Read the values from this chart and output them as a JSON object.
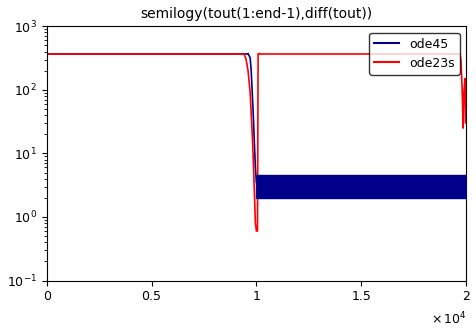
{
  "title": "semilogy(tout(1:end-1),diff(tout))",
  "xlim": [
    0,
    20000
  ],
  "ylim": [
    0.1,
    1000
  ],
  "xticks": [
    0,
    5000,
    10000,
    15000,
    20000
  ],
  "xtick_labels": [
    "0",
    "0.5",
    "1",
    "1.5",
    "2"
  ],
  "yticks": [
    0.1,
    1.0,
    10.0,
    100.0,
    1000.0
  ],
  "ytick_labels": [
    "10^{-1}",
    "10^{0}",
    "10^{1}",
    "10^{2}",
    "10^{3}"
  ],
  "legend_labels": [
    "ode45",
    "ode23s"
  ],
  "ode45_color": "#00008B",
  "ode23s_color": "red",
  "blue_band_y_bot": 2.0,
  "blue_band_y_top": 4.5,
  "blue_band_x_start": 10000,
  "blue_band_x_end": 20000,
  "ode45_flat_y": 370,
  "ode45_flat_x_end": 9600,
  "ode45_dip_x": [
    9600,
    9700,
    9750,
    9800,
    9850,
    9900,
    9950,
    10000
  ],
  "ode45_dip_y": [
    370,
    320,
    200,
    90,
    40,
    15,
    6,
    3.5
  ],
  "ode23s_flat_y": 370,
  "ode23s_flat_x_end": 9400,
  "ode23s_dip_x": [
    9400,
    9500,
    9600,
    9700,
    9800,
    9850,
    9900,
    9950,
    10000,
    10020,
    10050,
    10080,
    10150
  ],
  "ode23s_dip_y": [
    370,
    310,
    200,
    90,
    20,
    8,
    2.5,
    0.8,
    0.6,
    0.6,
    0.6,
    370,
    370
  ],
  "ode23s_flat2_x_start": 10150,
  "ode23s_flat2_x_end": 19700,
  "ode23s_flat2_y": 370,
  "ode23s_right_dip_x": [
    19700,
    19750,
    19800,
    19830,
    19860,
    19900,
    19950,
    19980,
    20000
  ],
  "ode23s_right_dip_y": [
    370,
    300,
    130,
    60,
    25,
    100,
    150,
    30,
    120
  ],
  "bg_color": "white",
  "title_fontsize": 10,
  "tick_fontsize": 9,
  "legend_fontsize": 9
}
